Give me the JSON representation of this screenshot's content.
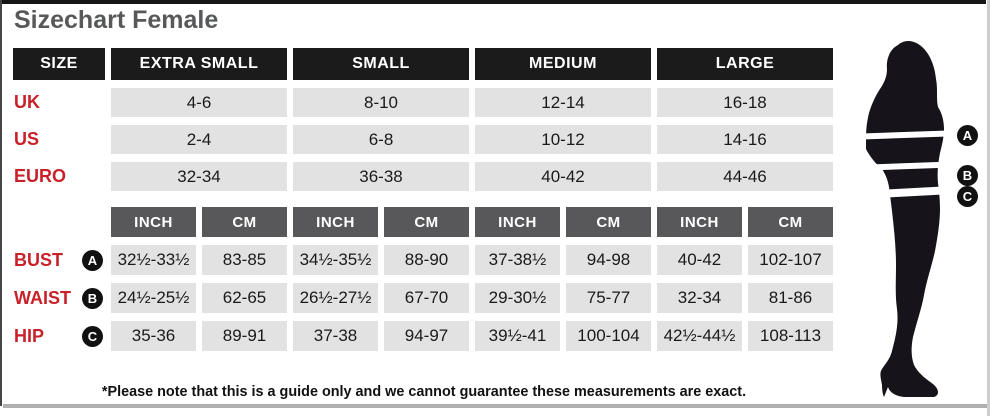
{
  "page": {
    "title": "Sizechart Female",
    "footnote": "*Please note that this is a guide only and we cannot guarantee these measurements are exact."
  },
  "colors": {
    "header_bg": "#1b1b1b",
    "unit_header_bg": "#58585a",
    "cell_bg": "#e2e2e2",
    "label_red": "#c92129",
    "title_gray": "#57585a"
  },
  "table": {
    "size_header": "SIZE",
    "size_columns": [
      "EXTRA SMALL",
      "SMALL",
      "MEDIUM",
      "LARGE"
    ],
    "region_rows": [
      {
        "label": "UK",
        "values": [
          "4-6",
          "8-10",
          "12-14",
          "16-18"
        ]
      },
      {
        "label": "US",
        "values": [
          "2-4",
          "6-8",
          "10-12",
          "14-16"
        ]
      },
      {
        "label": "EURO",
        "values": [
          "32-34",
          "36-38",
          "40-42",
          "44-46"
        ]
      }
    ],
    "unit_headers": [
      "INCH",
      "CM"
    ],
    "measurement_rows": [
      {
        "label": "BUST",
        "marker": "A",
        "values": [
          [
            "32½-33½",
            "83-85"
          ],
          [
            "34½-35½",
            "88-90"
          ],
          [
            "37-38½",
            "94-98"
          ],
          [
            "40-42",
            "102-107"
          ]
        ]
      },
      {
        "label": "WAIST",
        "marker": "B",
        "values": [
          [
            "24½-25½",
            "62-65"
          ],
          [
            "26½-27½",
            "67-70"
          ],
          [
            "29-30½",
            "75-77"
          ],
          [
            "32-34",
            "81-86"
          ]
        ]
      },
      {
        "label": "HIP",
        "marker": "C",
        "values": [
          [
            "35-36",
            "89-91"
          ],
          [
            "37-38",
            "94-97"
          ],
          [
            "39½-41",
            "100-104"
          ],
          [
            "42½-44½",
            "108-113"
          ]
        ]
      }
    ]
  },
  "figure": {
    "markers": [
      "A",
      "B",
      "C"
    ]
  }
}
